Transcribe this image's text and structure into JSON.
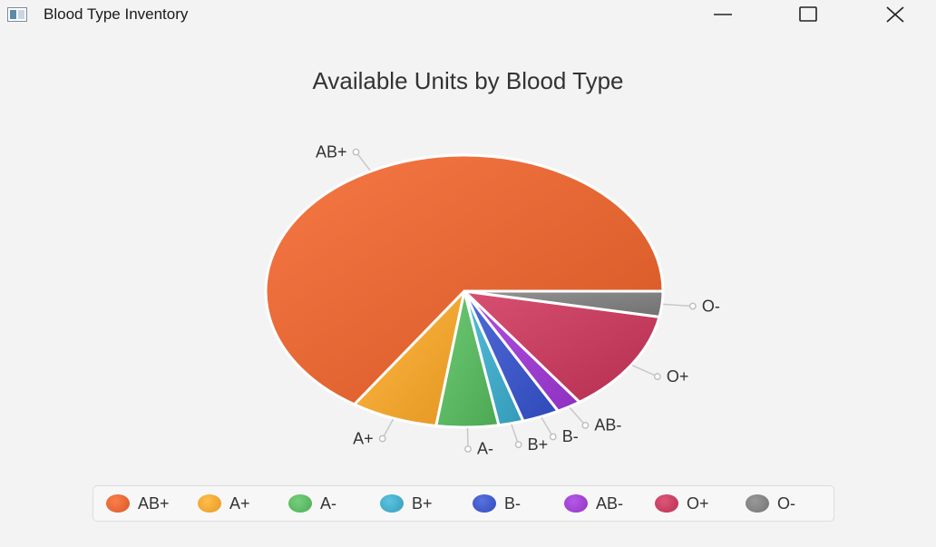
{
  "window": {
    "title": "Blood Type Inventory",
    "icon": "window-app-icon",
    "controls": [
      "minimize-icon",
      "maximize-icon",
      "close-icon"
    ]
  },
  "chart_data": {
    "type": "pie",
    "title": "Available Units by Blood Type",
    "labels": [
      "AB+",
      "A+",
      "A-",
      "B+",
      "B-",
      "AB-",
      "O+",
      "O-"
    ],
    "values": [
      65,
      7,
      5,
      2,
      3,
      2,
      12,
      3
    ],
    "colors": [
      "#e0622f",
      "#f0a22e",
      "#58b45e",
      "#3fa7c4",
      "#3b55c4",
      "#9a3ccc",
      "#c13a5c",
      "#7d7d7d"
    ],
    "start_angle_deg": 0,
    "direction": "counterclockwise",
    "legend": "bottom"
  }
}
